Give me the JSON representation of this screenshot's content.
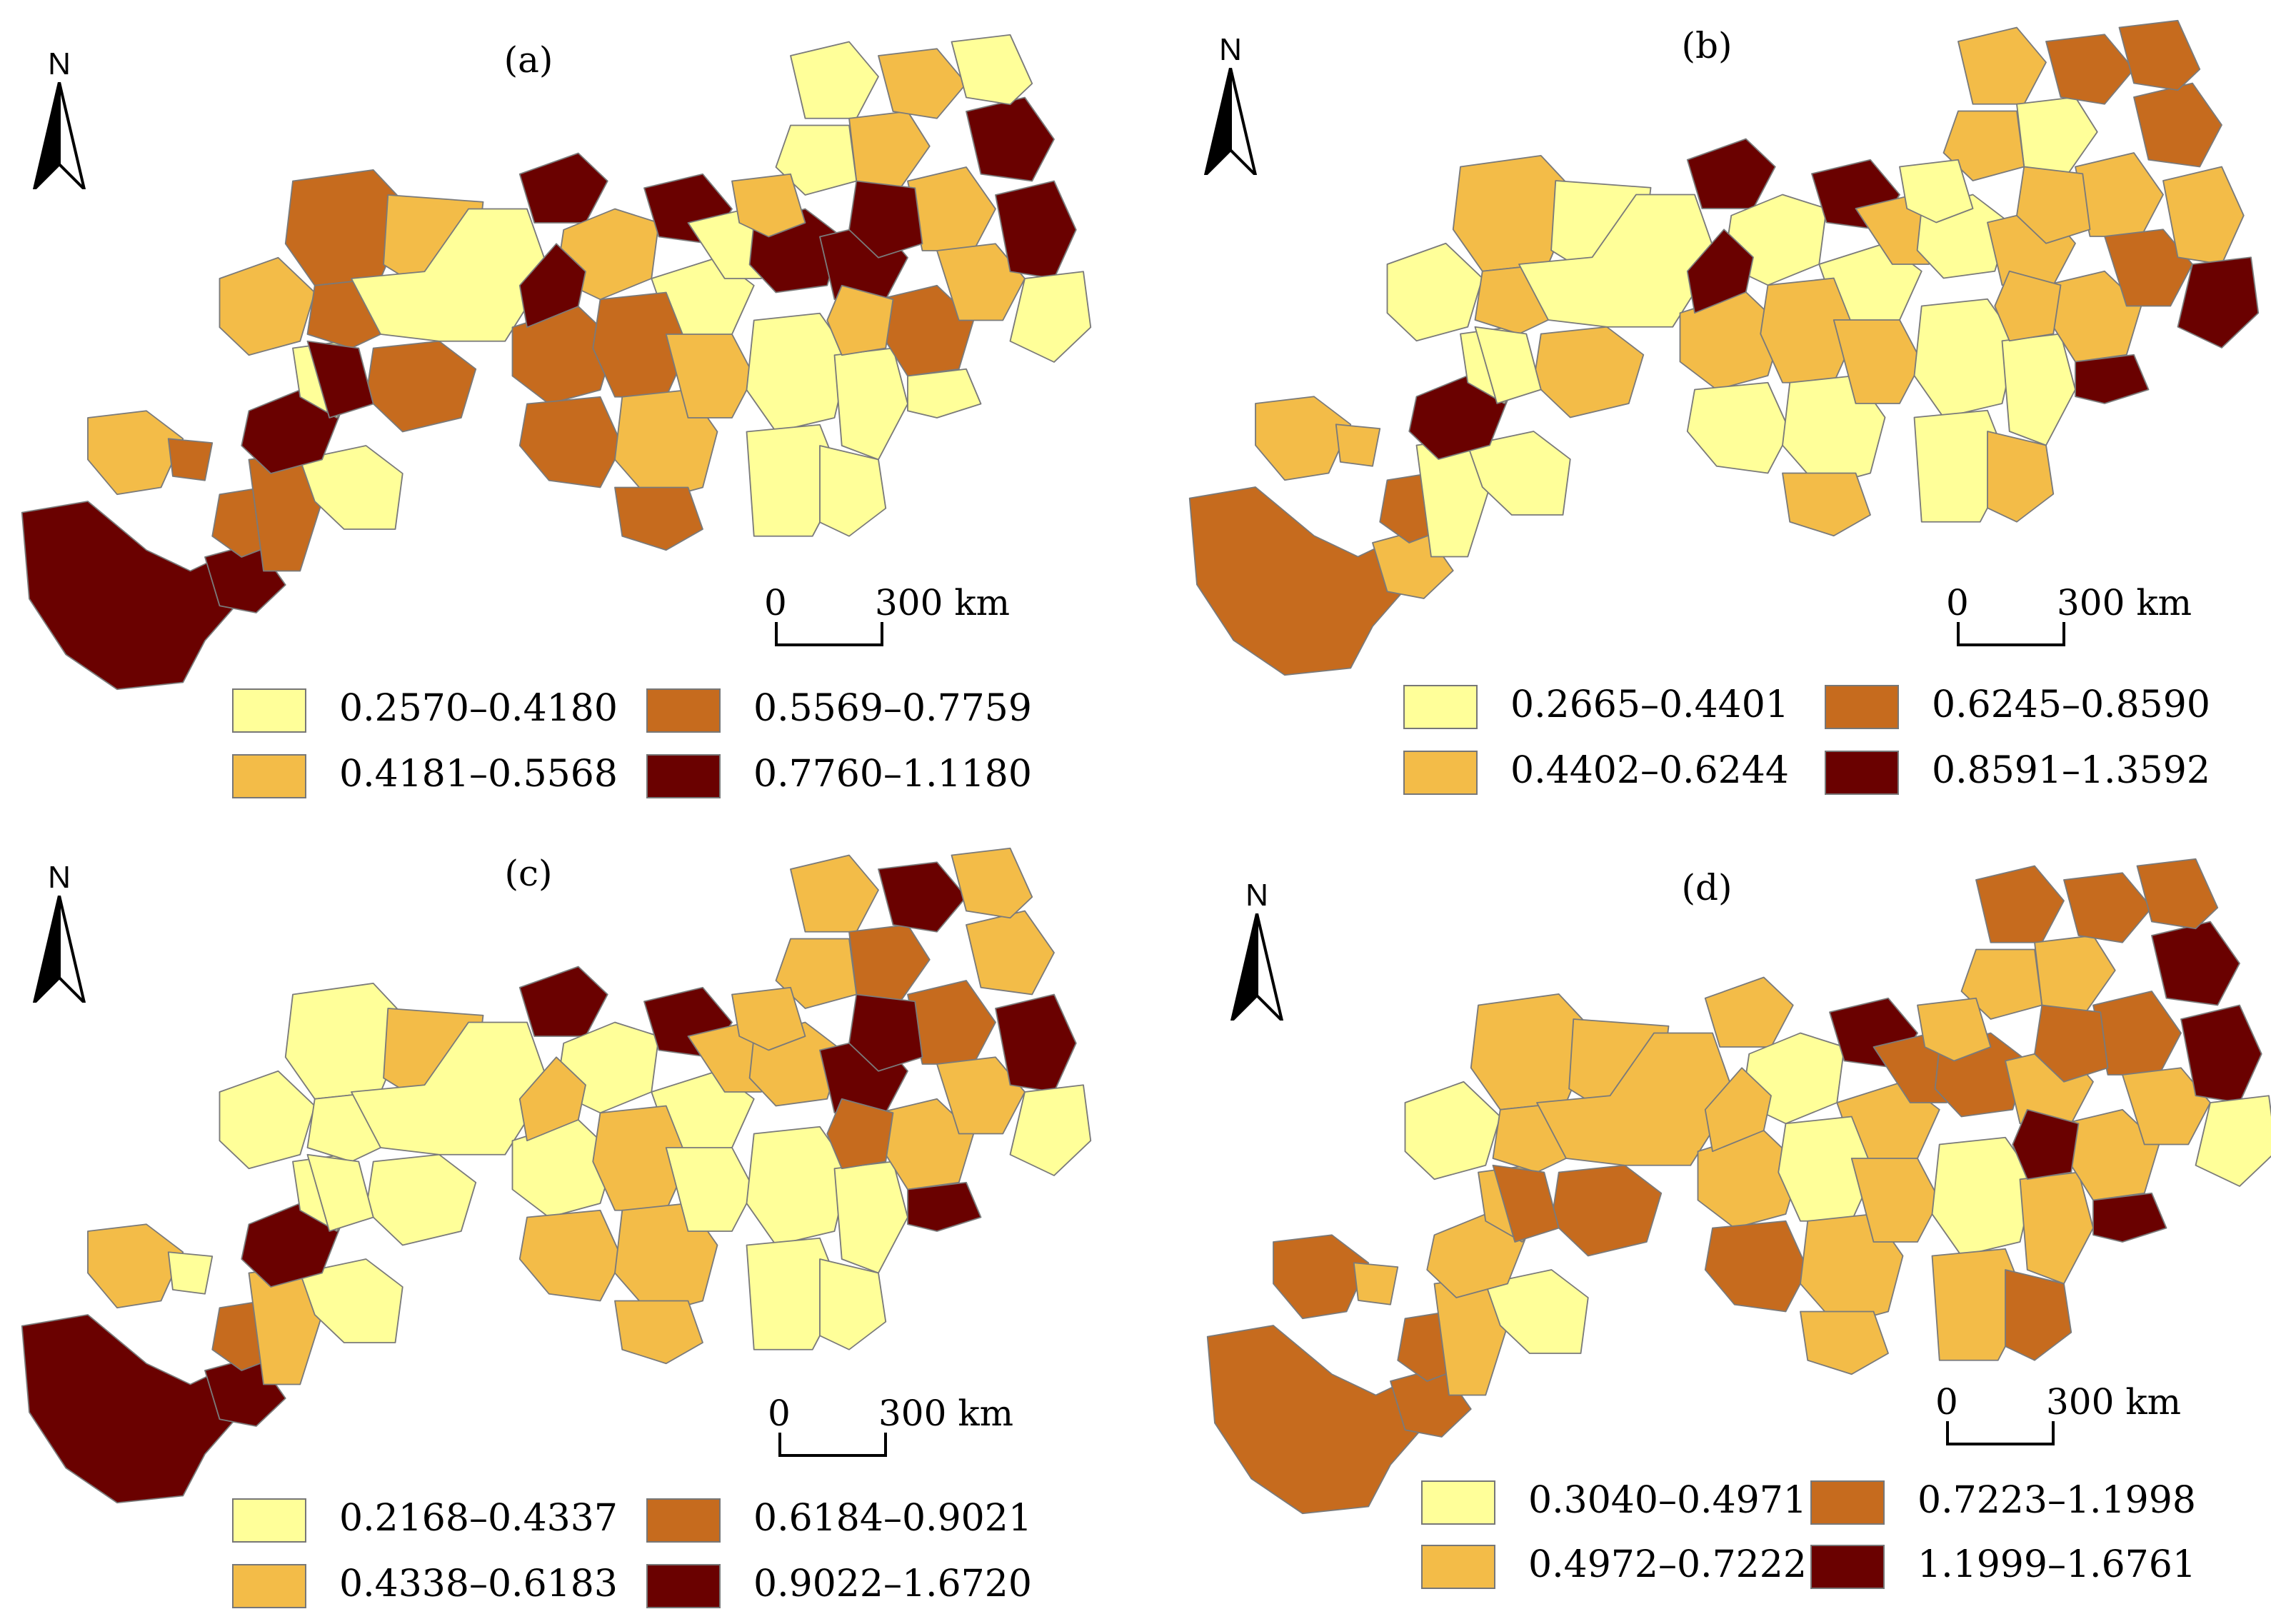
{
  "colors": {
    "class1": "#ffff99",
    "class2": "#f3bc48",
    "class3": "#c66b1e",
    "class4": "#6a0100",
    "boundary": "#7a7a7a"
  },
  "north_label": "N",
  "scale": {
    "zero": "0",
    "distance": "300 km"
  },
  "panels": [
    {
      "title": "(a)",
      "legend": [
        "0.2570–0.4180",
        "0.4181–0.5568",
        "0.5569–0.7759",
        "0.7760–1.1180"
      ]
    },
    {
      "title": "(b)",
      "legend": [
        "0.2665–0.4401",
        "0.4402–0.6244",
        "0.6245–0.8590",
        "0.8591–1.3592"
      ]
    },
    {
      "title": "(c)",
      "legend": [
        "0.2168–0.4337",
        "0.4338–0.6183",
        "0.6184–0.9021",
        "0.9022–1.6720"
      ]
    },
    {
      "title": "(d)",
      "legend": [
        "0.3040–0.4971",
        "0.4972–0.7222",
        "0.7223–1.1998",
        "1.1999–1.6761"
      ]
    }
  ]
}
